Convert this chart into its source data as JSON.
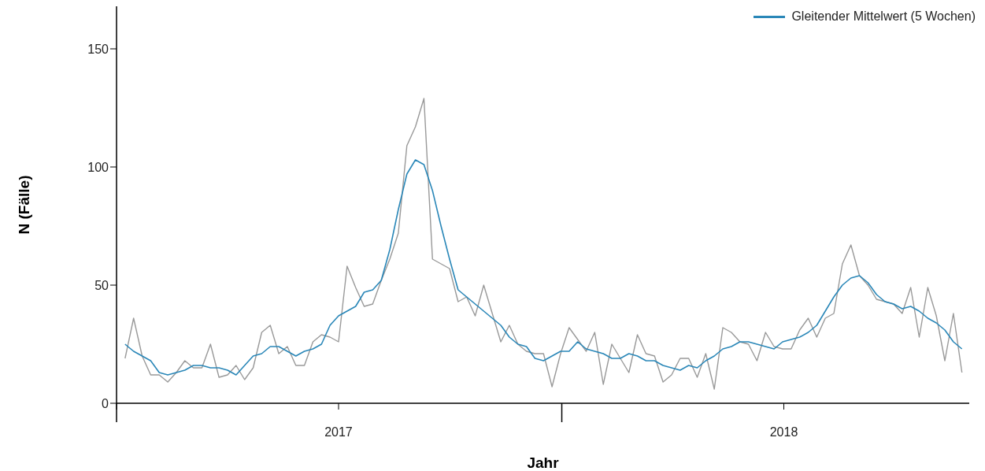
{
  "chart_data": {
    "type": "line",
    "xlabel": "Jahr",
    "ylabel": "N (Fälle)",
    "legend": "top right",
    "x": [
      "2017-01-08",
      "2017-01-15",
      "2017-01-22",
      "2017-01-29",
      "2017-02-05",
      "2017-02-12",
      "2017-02-19",
      "2017-02-26",
      "2017-03-05",
      "2017-03-12",
      "2017-03-19",
      "2017-03-26",
      "2017-04-02",
      "2017-04-09",
      "2017-04-16",
      "2017-04-23",
      "2017-04-30",
      "2017-05-07",
      "2017-05-14",
      "2017-05-21",
      "2017-05-28",
      "2017-06-04",
      "2017-06-11",
      "2017-06-18",
      "2017-06-25",
      "2017-07-02",
      "2017-07-09",
      "2017-07-16",
      "2017-07-23",
      "2017-07-30",
      "2017-08-06",
      "2017-08-13",
      "2017-08-20",
      "2017-08-27",
      "2017-09-03",
      "2017-09-10",
      "2017-09-17",
      "2017-09-24",
      "2017-10-01",
      "2017-10-08",
      "2017-10-15",
      "2017-10-22",
      "2017-10-29",
      "2017-11-05",
      "2017-11-12",
      "2017-11-19",
      "2017-11-26",
      "2017-12-03",
      "2017-12-10",
      "2017-12-17",
      "2017-12-24",
      "2017-12-31",
      "2018-01-07",
      "2018-01-14",
      "2018-01-21",
      "2018-01-28",
      "2018-02-04",
      "2018-02-11",
      "2018-02-18",
      "2018-02-25",
      "2018-03-04",
      "2018-03-11",
      "2018-03-18",
      "2018-03-25",
      "2018-04-01",
      "2018-04-08",
      "2018-04-15",
      "2018-04-22",
      "2018-04-29",
      "2018-05-06",
      "2018-05-13",
      "2018-05-20",
      "2018-05-27",
      "2018-06-03",
      "2018-06-10",
      "2018-06-17",
      "2018-06-24",
      "2018-07-01",
      "2018-07-08",
      "2018-07-15",
      "2018-07-22",
      "2018-07-29",
      "2018-08-05",
      "2018-08-12",
      "2018-08-19",
      "2018-08-26",
      "2018-09-02",
      "2018-09-09",
      "2018-09-16",
      "2018-09-23",
      "2018-09-30",
      "2018-10-07",
      "2018-10-14",
      "2018-10-21",
      "2018-10-28",
      "2018-11-04",
      "2018-11-11",
      "2018-11-18",
      "2018-11-25"
    ],
    "series": [
      {
        "color": "#999999",
        "values": [
          19,
          36,
          20,
          12,
          12,
          9,
          13,
          18,
          15,
          15,
          25,
          11,
          12,
          16,
          10,
          15,
          30,
          33,
          21,
          24,
          16,
          16,
          26,
          29,
          28,
          26,
          58,
          49,
          41,
          42,
          52,
          61,
          72,
          109,
          117,
          129,
          61,
          59,
          57,
          43,
          45,
          37,
          50,
          38,
          26,
          33,
          25,
          22,
          21,
          21,
          7,
          21,
          32,
          27,
          22,
          30,
          8,
          25,
          19,
          13,
          29,
          21,
          20,
          9,
          12,
          19,
          19,
          11,
          21,
          6,
          32,
          30,
          26,
          25,
          18,
          30,
          24,
          23,
          23,
          31,
          36,
          28,
          36,
          38,
          59,
          67,
          54,
          50,
          44,
          43,
          42,
          38,
          49,
          28,
          49,
          37,
          18,
          38,
          13
        ]
      },
      {
        "name": "Gleitender Mittelwert (5 Wochen)",
        "color": "#2a87b8",
        "values": [
          25,
          22,
          20,
          18,
          13,
          12,
          13,
          14,
          16,
          16,
          15,
          15,
          14,
          12,
          16,
          20,
          21,
          24,
          24,
          22,
          20,
          22,
          23,
          25,
          33,
          37,
          39,
          41,
          47,
          48,
          52,
          65,
          82,
          97,
          103,
          101,
          90,
          75,
          61,
          48,
          45,
          42,
          39,
          36,
          33,
          28,
          25,
          24,
          19,
          18,
          20,
          22,
          22,
          26,
          23,
          22,
          21,
          19,
          19,
          21,
          20,
          18,
          18,
          16,
          15,
          14,
          16,
          15,
          18,
          20,
          23,
          24,
          26,
          26,
          25,
          24,
          23,
          26,
          27,
          28,
          30,
          33,
          39,
          45,
          50,
          53,
          54,
          51,
          46,
          43,
          42,
          40,
          41,
          39,
          36,
          34,
          31,
          26,
          23
        ]
      }
    ],
    "xlim": [
      "2017-01-01",
      "2018-12-01"
    ],
    "xticks": [
      {
        "value": "2017-01-01",
        "label": null
      },
      {
        "value": "2017-07-02",
        "label": "2017"
      },
      {
        "value": "2018-01-01",
        "label": null
      },
      {
        "value": "2018-07-02",
        "label": "2018"
      }
    ],
    "ylim": [
      0,
      168
    ],
    "yticks": [
      0,
      50,
      100,
      150
    ]
  }
}
